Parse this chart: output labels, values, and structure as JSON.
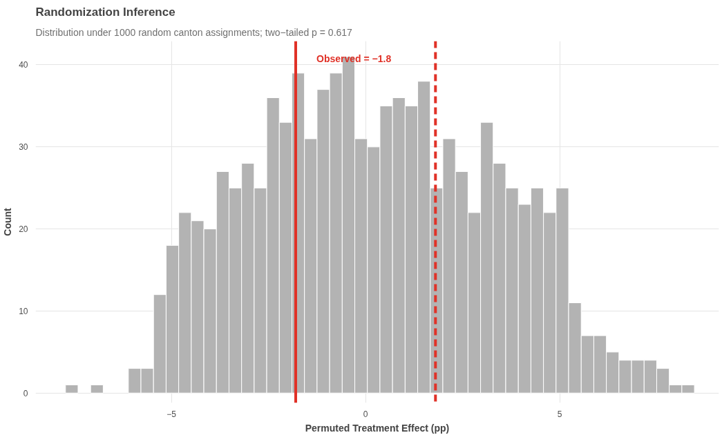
{
  "chart_data": {
    "type": "histogram",
    "title": "Randomization Inference",
    "subtitle": "Distribution under 1000 random canton assignments; two−tailed p = 0.617",
    "xlabel": "Permuted Treatment Effect (pp)",
    "ylabel": "Count",
    "bins": [
      -7.73,
      -7.406,
      -7.082,
      -6.758,
      -6.434,
      -6.11,
      -5.786,
      -5.462,
      -5.138,
      -4.814,
      -4.49,
      -4.166,
      -3.842,
      -3.518,
      -3.194,
      -2.87,
      -2.546,
      -2.222,
      -1.898,
      -1.574,
      -1.25,
      -0.926,
      -0.602,
      -0.278,
      0.046,
      0.37,
      0.694,
      1.018,
      1.342,
      1.666,
      1.99,
      2.314,
      2.638,
      2.962,
      3.286,
      3.61,
      3.934,
      4.258,
      4.582,
      4.906,
      5.23,
      5.554,
      5.878,
      6.202,
      6.526,
      6.85,
      7.174,
      7.498,
      7.822,
      8.146,
      8.47
    ],
    "values": [
      1,
      0,
      1,
      0,
      0,
      3,
      3,
      12,
      18,
      22,
      21,
      20,
      27,
      25,
      28,
      25,
      36,
      33,
      39,
      31,
      37,
      39,
      41,
      31,
      30,
      35,
      36,
      35,
      38,
      25,
      31,
      27,
      22,
      33,
      28,
      25,
      23,
      25,
      22,
      25,
      11,
      7,
      7,
      5,
      4,
      4,
      4,
      3,
      1,
      1
    ],
    "color": "#b3b3b3",
    "xlim": [
      -8.5,
      9.1
    ],
    "ylim": [
      -1.2,
      42.9
    ],
    "xticks": [
      {
        "value": -5,
        "label": "−5"
      },
      0,
      5
    ],
    "yticks": [
      0,
      10,
      20,
      30,
      40
    ],
    "grid": true,
    "ref_lines": [
      {
        "axis": "x",
        "value": -1.8,
        "color": "#e03127",
        "line_style": "solid"
      },
      {
        "axis": "x",
        "value": 1.8,
        "color": "#e03127",
        "line_style": "dashed"
      }
    ],
    "annotations": [
      "Observed = −1.8"
    ]
  }
}
